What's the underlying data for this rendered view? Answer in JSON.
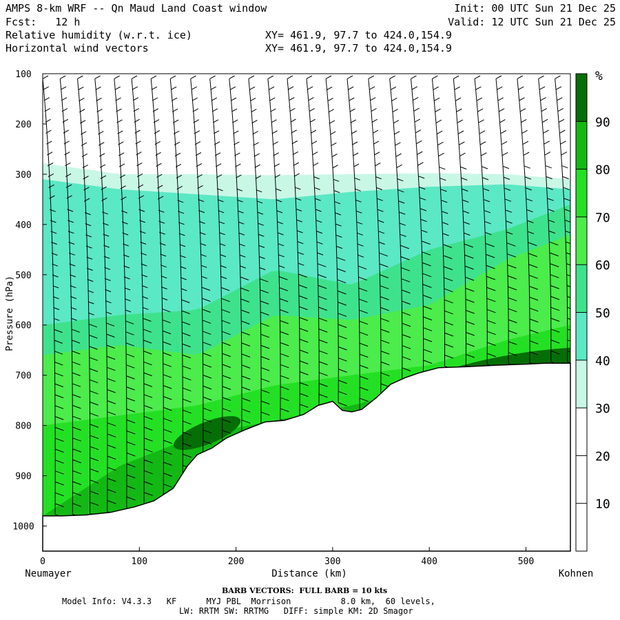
{
  "header": {
    "title": "AMPS 8-km WRF -- Qn Maud Land Coast window",
    "fcst_label": "Fcst:",
    "fcst_value": "12 h",
    "field1": "Relative humidity (w.r.t. ice)",
    "field2": "Horizontal wind vectors",
    "xy1": "XY= 461.9, 97.7 to 424.0,154.9",
    "xy2": "XY= 461.9, 97.7 to 424.0,154.9",
    "init": "Init: 00 UTC Sun 21 Dec 25",
    "valid": "Valid: 12 UTC Sun 21 Dec 25"
  },
  "footer": {
    "barb_note": "BARB VECTORS:  FULL BARB = 10 kts",
    "model_line1": "Model Info: V4.3.3   KF      MYJ PBL  Morrison          8.0 km,  60 levels,",
    "model_line2": "LW: RRTM SW: RRTMG   DIFF: simple KM: 2D Smagor"
  },
  "colors": {
    "rh_10_30": "#ffffff",
    "rh_30_40": "#c8f7e6",
    "rh_40_50": "#5be8c5",
    "rh_50_60": "#3ee28c",
    "rh_60_70": "#4bec4b",
    "rh_70_80": "#24e024",
    "rh_80_90": "#14b814",
    "rh_90_100": "#066e06",
    "terrain": "#ffffff",
    "barb": "#000000"
  },
  "chart_data": {
    "type": "cross-section contour",
    "title": "Relative humidity (w.r.t. ice) with horizontal wind vectors",
    "xlabel": "Distance (km)",
    "ylabel": "Pressure (hPa)",
    "xlim": [
      0,
      546
    ],
    "ylim": [
      1050,
      100
    ],
    "x_ticks": [
      0,
      100,
      200,
      300,
      400,
      500
    ],
    "y_ticks": [
      100,
      200,
      300,
      400,
      500,
      600,
      700,
      800,
      900,
      1000
    ],
    "start_label": "Neumayer",
    "end_label": "Kohnen",
    "colorbar": {
      "unit": "%",
      "levels": [
        10,
        20,
        30,
        40,
        50,
        60,
        70,
        80,
        90
      ],
      "bounds": [
        0,
        10,
        20,
        30,
        40,
        50,
        60,
        70,
        80,
        90,
        100
      ]
    },
    "terrain_surface_hpa": {
      "x_km": [
        0,
        20,
        45,
        70,
        95,
        115,
        135,
        150,
        160,
        175,
        190,
        210,
        230,
        250,
        270,
        285,
        300,
        310,
        320,
        330,
        345,
        360,
        375,
        390,
        410,
        440,
        470,
        500,
        520,
        546
      ],
      "p_hpa": [
        980,
        980,
        978,
        973,
        962,
        950,
        925,
        880,
        858,
        845,
        825,
        808,
        793,
        790,
        778,
        760,
        752,
        770,
        773,
        768,
        745,
        718,
        705,
        695,
        685,
        683,
        680,
        678,
        676,
        676
      ]
    },
    "rh_bands": [
      {
        "level": 30,
        "top_hpa": [
          278,
          300,
          300,
          302,
          300,
          298,
          300,
          310
        ]
      },
      {
        "level": 40,
        "top_hpa": [
          310,
          330,
          340,
          350,
          335,
          325,
          320,
          330
        ]
      },
      {
        "level": 50,
        "top_hpa": [
          600,
          580,
          570,
          490,
          520,
          450,
          410,
          360
        ]
      },
      {
        "level": 60,
        "top_hpa": [
          660,
          640,
          660,
          580,
          590,
          560,
          470,
          420
        ]
      },
      {
        "level": 70,
        "top_hpa": [
          800,
          780,
          760,
          720,
          700,
          680,
          630,
          600
        ]
      },
      {
        "level": 80,
        "top_hpa": [
          980,
          880,
          820,
          790,
          760,
          720,
          680,
          650
        ]
      }
    ],
    "rh_band_x_km": [
      0,
      80,
      160,
      240,
      320,
      400,
      480,
      546
    ],
    "rh_max_patch": {
      "center_km": 170,
      "center_hpa": 815,
      "value": 95
    },
    "barb_columns_km": [
      10,
      28,
      46,
      64,
      84,
      102,
      122,
      142,
      163,
      183,
      203,
      223,
      243,
      263,
      283,
      303,
      325,
      347,
      369,
      391,
      413,
      435,
      457,
      479,
      501,
      523,
      540
    ]
  }
}
